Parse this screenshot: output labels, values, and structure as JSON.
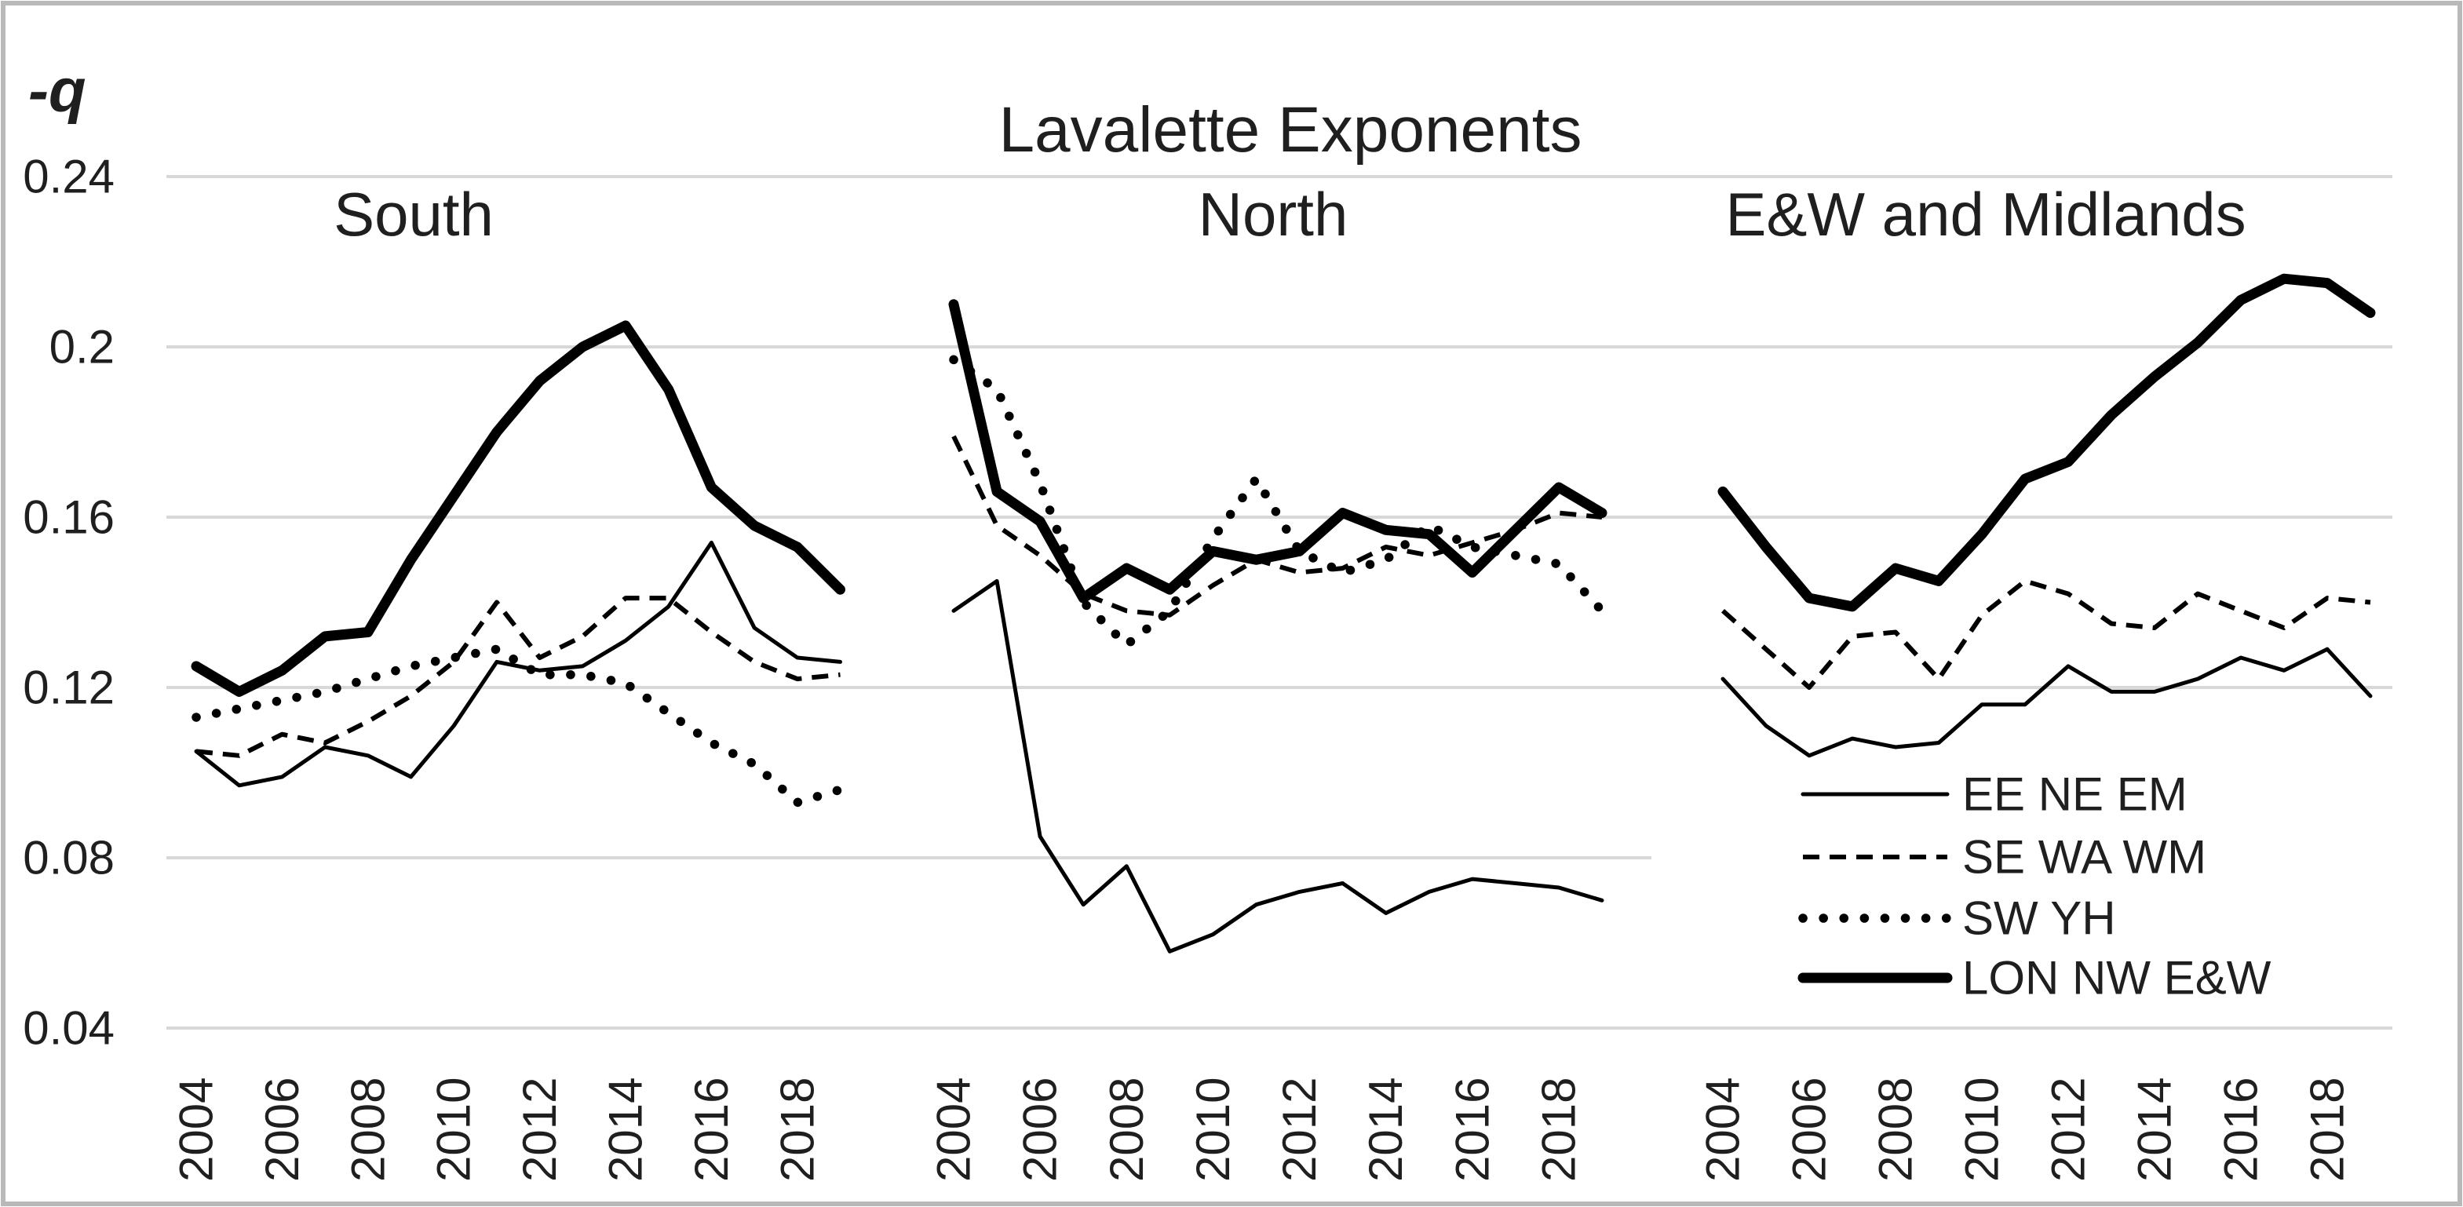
{
  "figure": {
    "background": "#ffffff",
    "border_color": "#b9b9b9"
  },
  "chart_data": {
    "type": "line",
    "title": "Lavalette Exponents",
    "ylabel": "-q",
    "grid": true,
    "ylim": [
      0.04,
      0.24
    ],
    "y_ticks": [
      0.24,
      0.2,
      0.16,
      0.12,
      0.08,
      0.04
    ],
    "y_tick_labels": [
      "0.24",
      "0.2",
      "0.16",
      "0.12",
      "0.08",
      "0.04"
    ],
    "x": [
      2004,
      2005,
      2006,
      2007,
      2008,
      2009,
      2010,
      2011,
      2012,
      2013,
      2014,
      2015,
      2016,
      2017,
      2018,
      2019
    ],
    "x_tick_labels": [
      "2004",
      "2006",
      "2008",
      "2010",
      "2012",
      "2014",
      "2016",
      "2018"
    ],
    "line_color": "#000000",
    "gridline_color": "#d8d8d8",
    "legend_position": "lower-right",
    "legend": [
      {
        "label": "EE NE EM",
        "style": "thin-solid"
      },
      {
        "label": "SE WA WM",
        "style": "dashed"
      },
      {
        "label": "SW YH",
        "style": "dotted"
      },
      {
        "label": "LON NW E&W",
        "style": "thick-solid"
      }
    ],
    "panels": [
      {
        "title": "South",
        "series": [
          {
            "name": "EE",
            "legend_label": "EE NE EM",
            "style": "thin-solid",
            "values": [
              0.105,
              0.097,
              0.099,
              0.106,
              0.104,
              0.099,
              0.111,
              0.126,
              0.124,
              0.125,
              0.131,
              0.139,
              0.154,
              0.134,
              0.127,
              0.126
            ]
          },
          {
            "name": "SE",
            "legend_label": "SE WA WM",
            "style": "dashed",
            "values": [
              0.105,
              0.104,
              0.109,
              0.107,
              0.112,
              0.118,
              0.126,
              0.14,
              0.127,
              0.132,
              0.141,
              0.141,
              0.133,
              0.126,
              0.122,
              0.123
            ]
          },
          {
            "name": "SW",
            "legend_label": "SW YH",
            "style": "dotted",
            "values": [
              0.113,
              0.115,
              0.117,
              0.119,
              0.122,
              0.125,
              0.127,
              0.129,
              0.123,
              0.123,
              0.121,
              0.114,
              0.107,
              0.102,
              0.093,
              0.096
            ]
          },
          {
            "name": "LON",
            "legend_label": "LON NW E&W",
            "style": "thick-solid",
            "values": [
              0.125,
              0.119,
              0.124,
              0.132,
              0.133,
              0.15,
              0.165,
              0.18,
              0.192,
              0.2,
              0.205,
              0.19,
              0.167,
              0.158,
              0.153,
              0.143
            ]
          }
        ]
      },
      {
        "title": "North",
        "series": [
          {
            "name": "NE",
            "legend_label": "EE NE EM",
            "style": "thin-solid",
            "values": [
              0.138,
              0.145,
              0.085,
              0.069,
              0.078,
              0.058,
              0.062,
              0.069,
              0.072,
              0.074,
              0.067,
              0.072,
              0.075,
              0.074,
              0.073,
              0.07
            ]
          },
          {
            "name": "WA",
            "legend_label": "SE WA WM",
            "style": "dashed",
            "values": [
              0.179,
              0.158,
              0.151,
              0.142,
              0.138,
              0.137,
              0.144,
              0.15,
              0.147,
              0.148,
              0.153,
              0.151,
              0.154,
              0.157,
              0.161,
              0.16
            ]
          },
          {
            "name": "YH",
            "legend_label": "SW YH",
            "style": "dotted",
            "values": [
              0.197,
              0.19,
              0.168,
              0.14,
              0.13,
              0.138,
              0.155,
              0.169,
              0.152,
              0.147,
              0.15,
              0.158,
              0.153,
              0.151,
              0.149,
              0.138
            ]
          },
          {
            "name": "NW",
            "legend_label": "LON NW E&W",
            "style": "thick-solid",
            "values": [
              0.21,
              0.166,
              0.159,
              0.141,
              0.148,
              0.143,
              0.152,
              0.15,
              0.152,
              0.161,
              0.157,
              0.156,
              0.147,
              0.157,
              0.167,
              0.161
            ]
          }
        ]
      },
      {
        "title": "E&W and Midlands",
        "series": [
          {
            "name": "EM",
            "legend_label": "EE NE EM",
            "style": "thin-solid",
            "values": [
              0.122,
              0.111,
              0.104,
              0.108,
              0.106,
              0.107,
              0.116,
              0.116,
              0.125,
              0.119,
              0.119,
              0.122,
              0.127,
              0.124,
              0.129,
              0.118
            ]
          },
          {
            "name": "WM",
            "legend_label": "SE WA WM",
            "style": "dashed",
            "values": [
              0.138,
              0.129,
              0.12,
              0.132,
              0.133,
              0.122,
              0.137,
              0.145,
              0.142,
              0.135,
              0.134,
              0.142,
              0.138,
              0.134,
              0.141,
              0.14
            ]
          },
          {
            "name": "E&W",
            "legend_label": "LON NW E&W",
            "style": "thick-solid",
            "values": [
              0.166,
              0.153,
              0.141,
              0.139,
              0.148,
              0.145,
              0.156,
              0.169,
              0.173,
              0.184,
              0.193,
              0.201,
              0.211,
              0.216,
              0.215,
              0.208
            ]
          }
        ]
      }
    ]
  }
}
